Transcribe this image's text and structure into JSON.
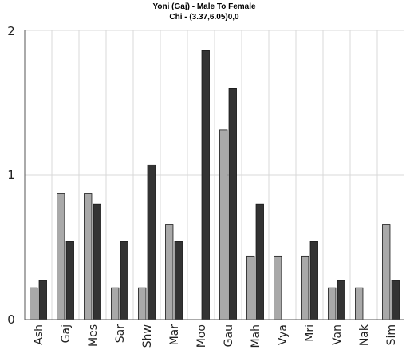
{
  "chart_data": {
    "type": "bar",
    "title": "Yoni (Gaj) - Male To Female",
    "subtitle": "Chi - (3.37,6.05)0,0",
    "xlabel": "",
    "ylabel": "",
    "ylim": [
      0,
      2
    ],
    "yticks": [
      "0",
      "1",
      "2"
    ],
    "grid": true,
    "categories": [
      "Ash",
      "Gaj",
      "Mes",
      "Sar",
      "Shw",
      "Mar",
      "Moo",
      "Gau",
      "Mah",
      "Vya",
      "Mri",
      "Van",
      "Nak",
      "Sim"
    ],
    "series": [
      {
        "values": [
          0.22,
          0.87,
          0.87,
          0.22,
          0.22,
          0.66,
          0.0,
          1.31,
          0.44,
          0.44,
          0.44,
          0.22,
          0.22,
          0.66
        ]
      },
      {
        "values": [
          0.27,
          0.54,
          0.8,
          0.54,
          1.07,
          0.54,
          1.86,
          1.6,
          0.8,
          0.0,
          0.54,
          0.27,
          0.0,
          0.27
        ]
      }
    ],
    "colors": [
      "#a9a9a9",
      "#333333"
    ],
    "bar_stroke": "#1a1a1a"
  }
}
